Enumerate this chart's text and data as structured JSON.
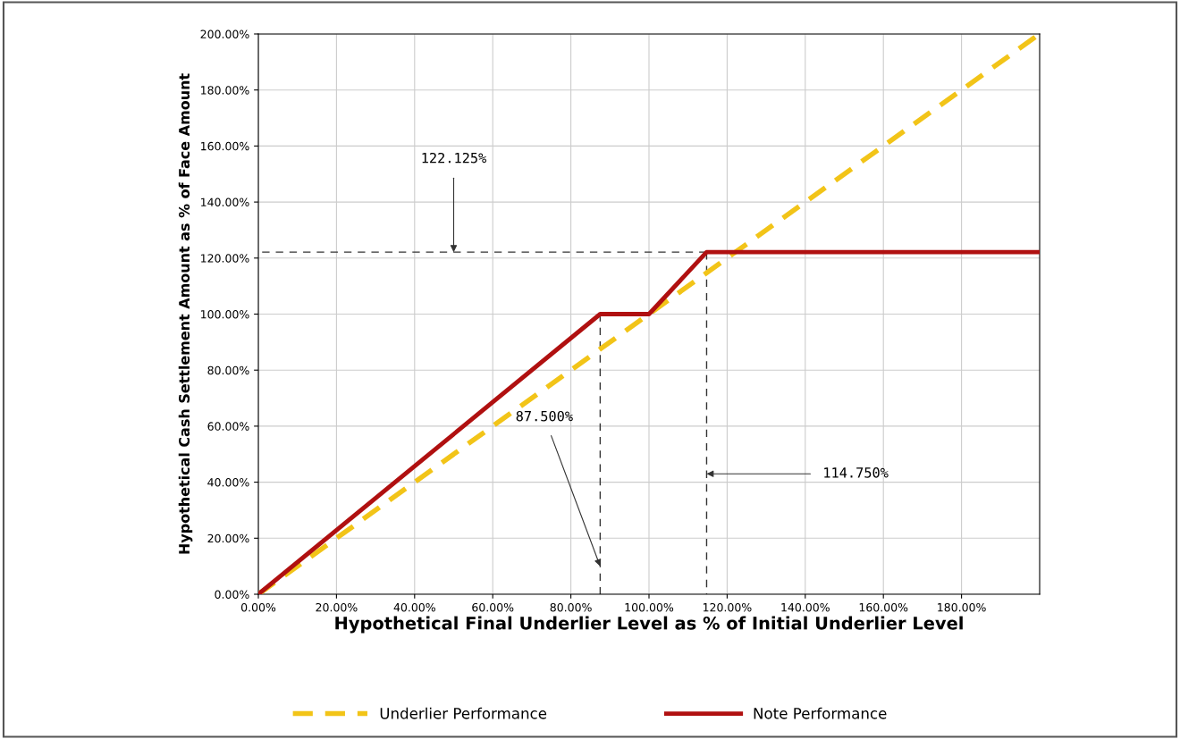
{
  "chart_data": {
    "type": "line",
    "xlabel": "Hypothetical Final Underlier Level as % of Initial Underlier Level",
    "ylabel": "Hypothetical Cash Settlement Amount as % of Face Amount",
    "series": [
      {
        "name": "Underlier Performance",
        "color": "#f2c418",
        "line_style": "dashed",
        "x": [
          0,
          200
        ],
        "values": [
          0,
          200
        ]
      },
      {
        "name": "Note Performance",
        "color": "#b01010",
        "line_style": "solid",
        "x": [
          0,
          87.5,
          100,
          114.75,
          200
        ],
        "values": [
          0,
          100,
          100,
          122.125,
          122.125
        ]
      },
      {
        "color": "#333333",
        "line_style": "dashed",
        "x": [
          114.75,
          0
        ],
        "values": [
          122.125,
          122.125
        ]
      },
      {
        "color": "#333333",
        "line_style": "dashed",
        "x": [
          87.5,
          87.5
        ],
        "values": [
          100,
          0
        ]
      },
      {
        "color": "#333333",
        "line_style": "dashed",
        "x": [
          114.75,
          114.75
        ],
        "values": [
          122.125,
          0
        ]
      }
    ],
    "annotations": [
      {
        "text": "122.125%",
        "x": 50,
        "y": 122.125
      },
      {
        "text": "87.500%",
        "x": 87.5,
        "y": 10
      },
      {
        "text": "114.750%",
        "x": 114.75,
        "y": 43
      }
    ],
    "xlim": [
      0,
      200
    ],
    "xticks": [
      {
        "value": 0,
        "label": "0.00%"
      },
      {
        "value": 20,
        "label": "20.00%"
      },
      {
        "value": 40,
        "label": "40.00%"
      },
      {
        "value": 60,
        "label": "60.00%"
      },
      {
        "value": 80,
        "label": "80.00%"
      },
      {
        "value": 100,
        "label": "100.00%"
      },
      {
        "value": 120,
        "label": "120.00%"
      },
      {
        "value": 140,
        "label": "140.00%"
      },
      {
        "value": 160,
        "label": "160.00%"
      },
      {
        "value": 180,
        "label": "180.00%"
      }
    ],
    "ylim": [
      0,
      200
    ],
    "yticks": [
      {
        "value": 0,
        "label": "0.00%"
      },
      {
        "value": 20,
        "label": "20.00%"
      },
      {
        "value": 40,
        "label": "40.00%"
      },
      {
        "value": 60,
        "label": "60.00%"
      },
      {
        "value": 80,
        "label": "80.00%"
      },
      {
        "value": 100,
        "label": "100.00%"
      },
      {
        "value": 120,
        "label": "120.00%"
      },
      {
        "value": 140,
        "label": "140.00%"
      },
      {
        "value": 160,
        "label": "160.00%"
      },
      {
        "value": 180,
        "label": "180.00%"
      },
      {
        "value": 200,
        "label": "200.00%"
      }
    ],
    "grid": true,
    "legend": "bottom"
  }
}
